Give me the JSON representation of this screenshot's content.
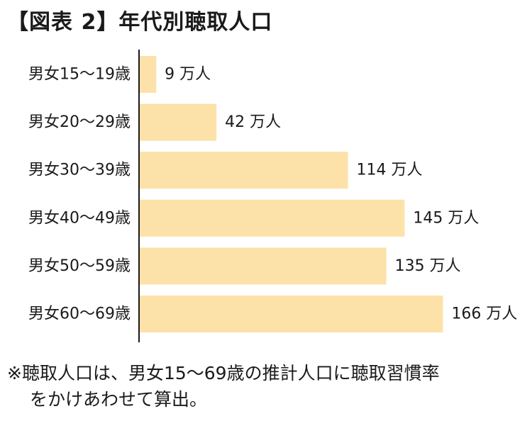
{
  "chart_data": {
    "type": "bar",
    "orientation": "horizontal",
    "title": "【図表 2】年代別聴取人口",
    "categories": [
      "男女15〜19歳",
      "男女20〜29歳",
      "男女30〜39歳",
      "男女40〜49歳",
      "男女50〜59歳",
      "男女60〜69歳"
    ],
    "values": [
      9,
      42,
      114,
      145,
      135,
      166
    ],
    "value_labels": [
      "9 万人",
      "42 万人",
      "114 万人",
      "145 万人",
      "135 万人",
      "166 万人"
    ],
    "unit": "万人",
    "xlim": [
      0,
      200
    ],
    "grid": false,
    "legend": "none",
    "bar_color": "#fce1a8",
    "axis_color": "#1a1a1a"
  },
  "note": {
    "line1": "※聴取人口は、男女15〜69歳の推計人口に聴取習慣率",
    "line2": "をかけあわせて算出。"
  }
}
